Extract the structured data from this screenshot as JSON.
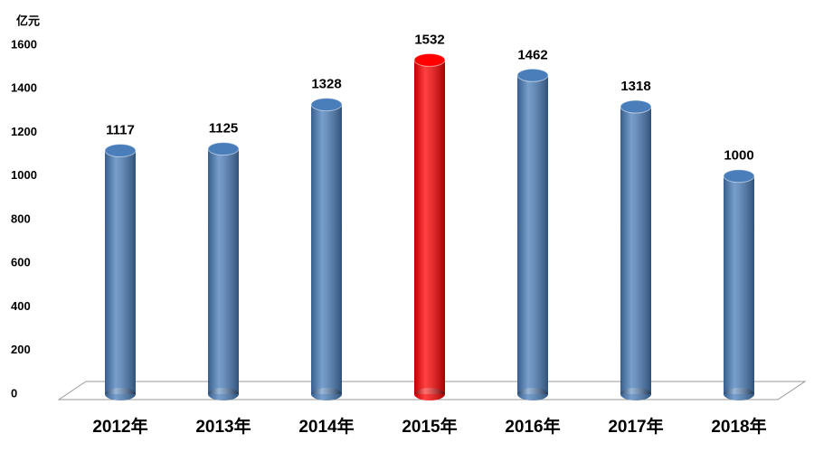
{
  "chart_data": {
    "type": "bar",
    "y_label": "亿元",
    "categories": [
      "2012年",
      "2013年",
      "2014年",
      "2015年",
      "2016年",
      "2017年",
      "2018年"
    ],
    "values": [
      1117,
      1125,
      1328,
      1532,
      1462,
      1318,
      1000
    ],
    "colors": [
      "#4a7ebb",
      "#4a7ebb",
      "#4a7ebb",
      "#ff0000",
      "#4a7ebb",
      "#4a7ebb",
      "#4a7ebb"
    ],
    "ylim": [
      0,
      1600
    ],
    "yticks": [
      0,
      200,
      400,
      600,
      800,
      1000,
      1200,
      1400,
      1600
    ]
  }
}
